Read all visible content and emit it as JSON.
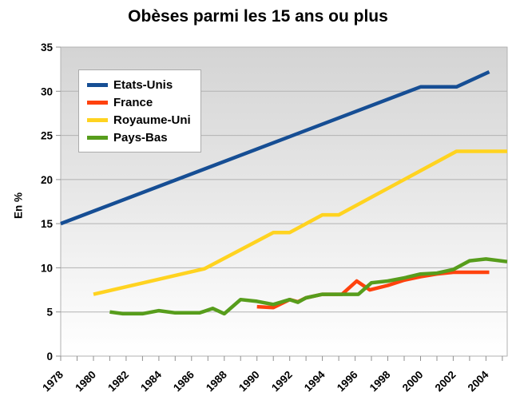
{
  "chart_data": {
    "type": "line",
    "title": "Obèses parmi les 15 ans ou plus",
    "xlabel": "",
    "ylabel": "En %",
    "x_range": [
      1978,
      2005.3
    ],
    "y_range": [
      0,
      35
    ],
    "x_ticks": [
      1978,
      1980,
      1982,
      1984,
      1986,
      1988,
      1990,
      1992,
      1994,
      1996,
      1998,
      2000,
      2002,
      2004
    ],
    "x_minor_tick_step": 1,
    "y_ticks": [
      0,
      5,
      10,
      15,
      20,
      25,
      30,
      35
    ],
    "grid": true,
    "legend_position": "top-left",
    "series": [
      {
        "name": "Etats-Unis",
        "color": "#164E94",
        "points": [
          [
            1978,
            15
          ],
          [
            2000,
            30.5
          ],
          [
            2002.2,
            30.5
          ],
          [
            2004.2,
            32.2
          ]
        ]
      },
      {
        "name": "France",
        "color": "#FF420E",
        "points": [
          [
            1990,
            5.6
          ],
          [
            1991,
            5.5
          ],
          [
            1992,
            6.4
          ],
          [
            1992.5,
            6.15
          ],
          [
            1993,
            6.6
          ],
          [
            1994,
            7
          ],
          [
            1995.2,
            7
          ],
          [
            1996.1,
            8.5
          ],
          [
            1996.9,
            7.5
          ],
          [
            1998,
            8
          ],
          [
            1999,
            8.6
          ],
          [
            2000,
            9
          ],
          [
            2001,
            9.3
          ],
          [
            2002,
            9.5
          ],
          [
            2004.2,
            9.5
          ]
        ]
      },
      {
        "name": "Royaume-Uni",
        "color": "#FFD320",
        "points": [
          [
            1980,
            7
          ],
          [
            1986.8,
            9.9
          ],
          [
            1991,
            14
          ],
          [
            1992,
            14
          ],
          [
            1994,
            16
          ],
          [
            1995,
            16
          ],
          [
            2002.2,
            23.2
          ],
          [
            2005.3,
            23.2
          ]
        ]
      },
      {
        "name": "Pays-Bas",
        "color": "#579D1C",
        "points": [
          [
            1981,
            5
          ],
          [
            1981.8,
            4.8
          ],
          [
            1983,
            4.8
          ],
          [
            1984,
            5.15
          ],
          [
            1985,
            4.9
          ],
          [
            1986.5,
            4.9
          ],
          [
            1987.3,
            5.4
          ],
          [
            1988,
            4.8
          ],
          [
            1989,
            6.4
          ],
          [
            1990,
            6.2
          ],
          [
            1991,
            5.85
          ],
          [
            1992,
            6.4
          ],
          [
            1992.5,
            6.1
          ],
          [
            1993,
            6.6
          ],
          [
            1994,
            7
          ],
          [
            1996.2,
            7
          ],
          [
            1997,
            8.3
          ],
          [
            1998,
            8.5
          ],
          [
            1999,
            8.85
          ],
          [
            2000,
            9.3
          ],
          [
            2001,
            9.4
          ],
          [
            2002,
            9.8
          ],
          [
            2003,
            10.8
          ],
          [
            2004,
            11
          ],
          [
            2005.3,
            10.7
          ]
        ]
      }
    ]
  },
  "colors": {
    "grid": "#b2b2b2",
    "tick": "#8f8f8f",
    "plot_bg_top": "#d4d4d4",
    "plot_bg_bottom": "#ffffff",
    "text": "#000000",
    "legend_border": "#ababab"
  }
}
